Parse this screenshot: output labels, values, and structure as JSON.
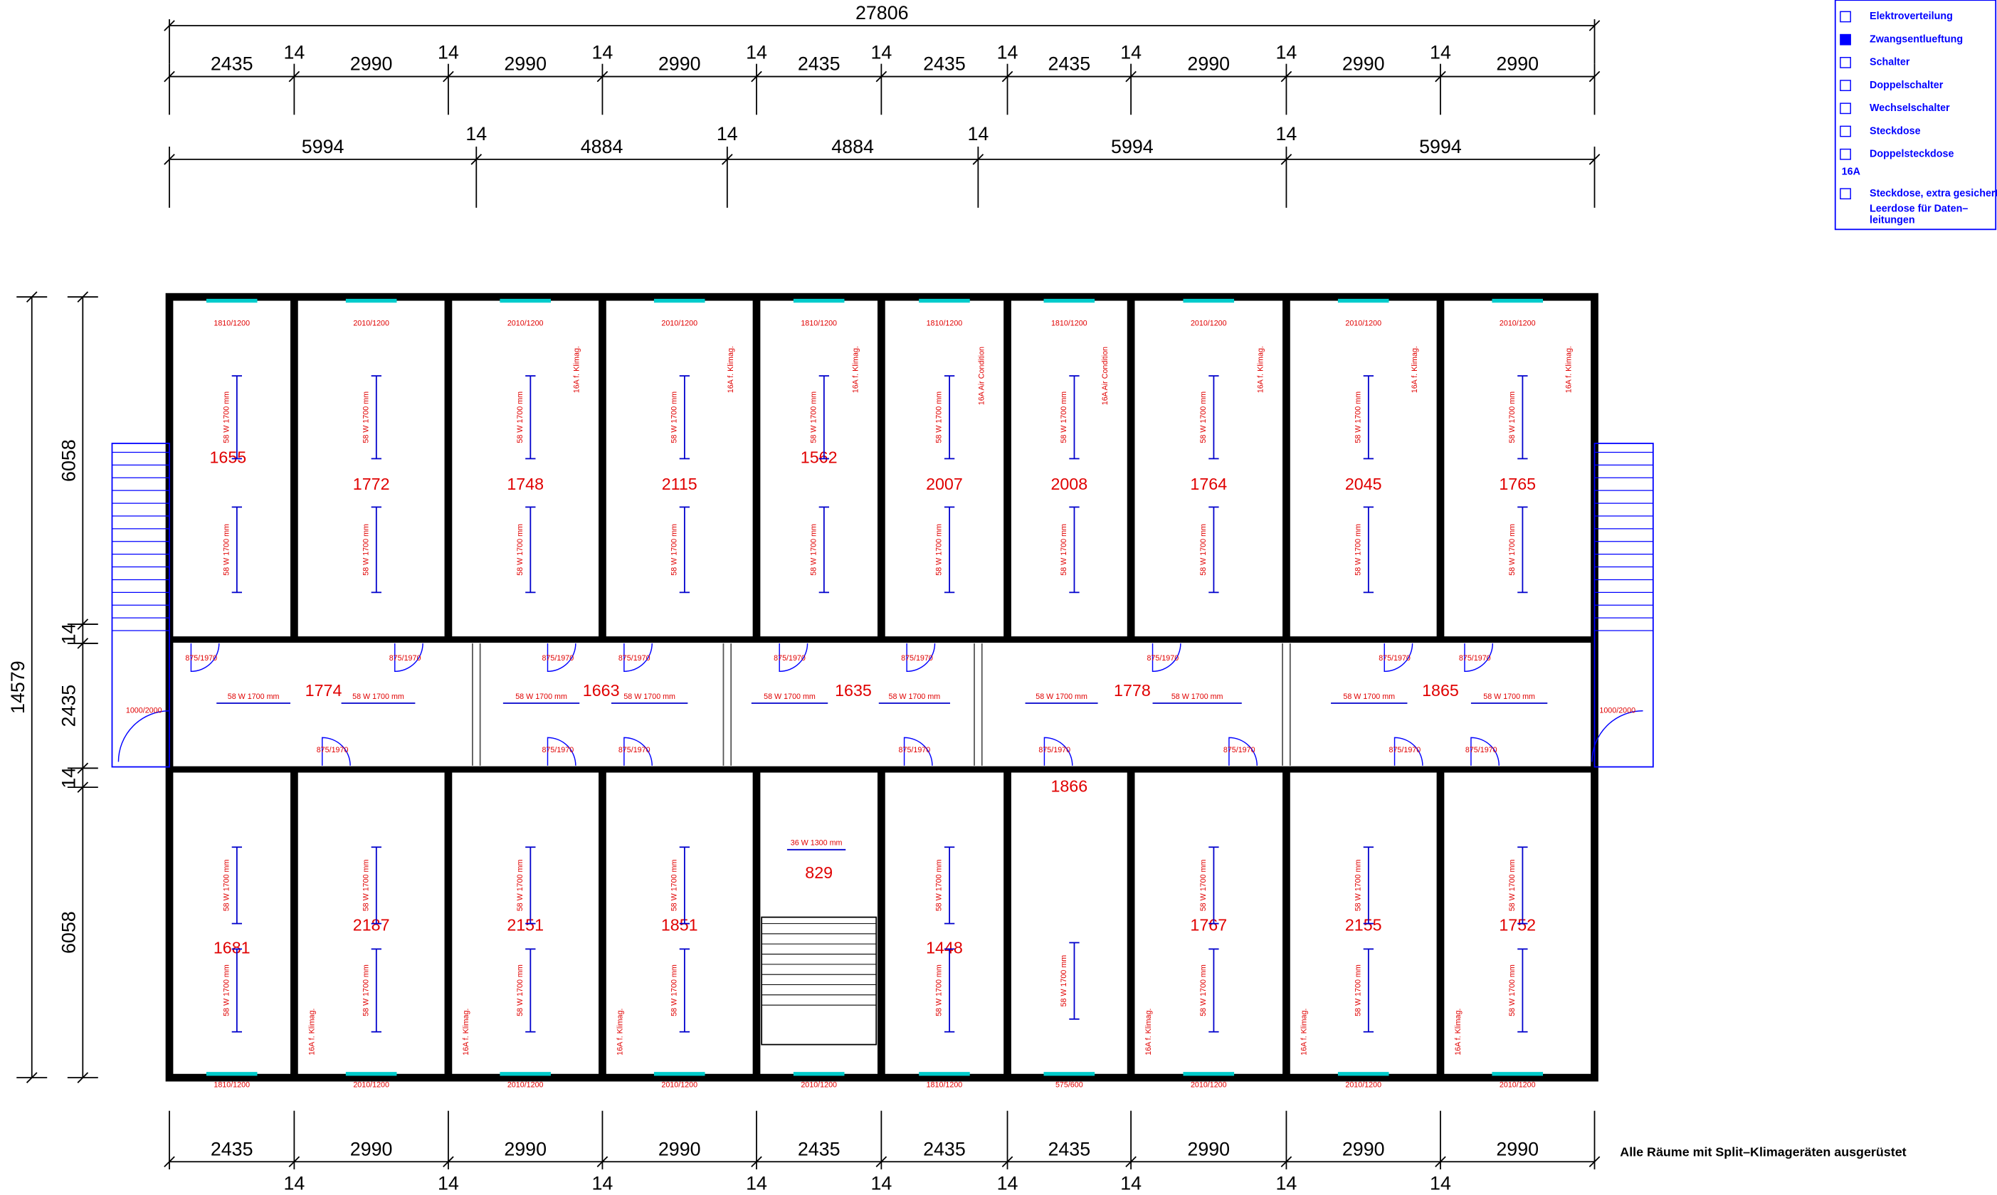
{
  "dimensions": {
    "overall": "27806",
    "top_row1": [
      "2435",
      "2990",
      "2990",
      "2990",
      "2435",
      "2435",
      "2435",
      "2990",
      "2990",
      "2990"
    ],
    "top_row1_gaps": [
      "14",
      "14",
      "14",
      "14",
      "14",
      "14",
      "14",
      "14",
      "14"
    ],
    "top_row2": [
      "5994",
      "4884",
      "4884",
      "5994",
      "5994"
    ],
    "top_row2_gaps": [
      "14",
      "14",
      "14",
      "14"
    ],
    "left_total": "14579",
    "left": [
      "6058",
      "14",
      "2435",
      "14",
      "6058"
    ],
    "bottom": [
      "2435",
      "2990",
      "2990",
      "2990",
      "2435",
      "2435",
      "2435",
      "2990",
      "2990",
      "2990"
    ],
    "bottom_gaps": [
      "14",
      "14",
      "14",
      "14",
      "14",
      "14",
      "14",
      "14",
      "14"
    ]
  },
  "rooms": {
    "top": [
      "1655",
      "1772",
      "1748",
      "2115",
      "1562",
      "2007",
      "2008",
      "1764",
      "2045",
      "1765"
    ],
    "corridor": [
      "1774",
      "1663",
      "1635",
      "1778",
      "1865"
    ],
    "bottom": [
      "1681",
      "2187",
      "2151",
      "1851",
      "829",
      "1448",
      "1866",
      "1767",
      "2155",
      "1752"
    ]
  },
  "windows": {
    "top": [
      "1810/1200",
      "2010/1200",
      "2010/1200",
      "2010/1200",
      "1810/1200",
      "1810/1200",
      "1810/1200",
      "2010/1200",
      "2010/1200",
      "2010/1200"
    ],
    "bottom": [
      "1810/1200",
      "2010/1200",
      "2010/1200",
      "2010/1200",
      "2010/1200",
      "1810/1200",
      "575/600",
      "2010/1200",
      "2010/1200",
      "2010/1200"
    ]
  },
  "doors": {
    "label": "875/1970",
    "stair_door": "1000/2000"
  },
  "lamp_label": "58 W 1700 mm",
  "stair_lamp_label": "36 W 1300 mm",
  "ac_label": "16A f. Klimag.",
  "ac_label_alt": "16A Air Condition",
  "legend": {
    "fuse": "16A",
    "items": [
      "Elektroverteilung",
      "Zwangsentlueftung",
      "Schalter",
      "Doppelschalter",
      "Wechselschalter",
      "Steckdose",
      "Doppelsteckdose",
      "Steckdose, extra gesichert"
    ],
    "data_socket": [
      "Leerdose für Daten–",
      "leitungen"
    ]
  },
  "note": "Alle Räume mit Split–Klimageräten ausgerüstet"
}
